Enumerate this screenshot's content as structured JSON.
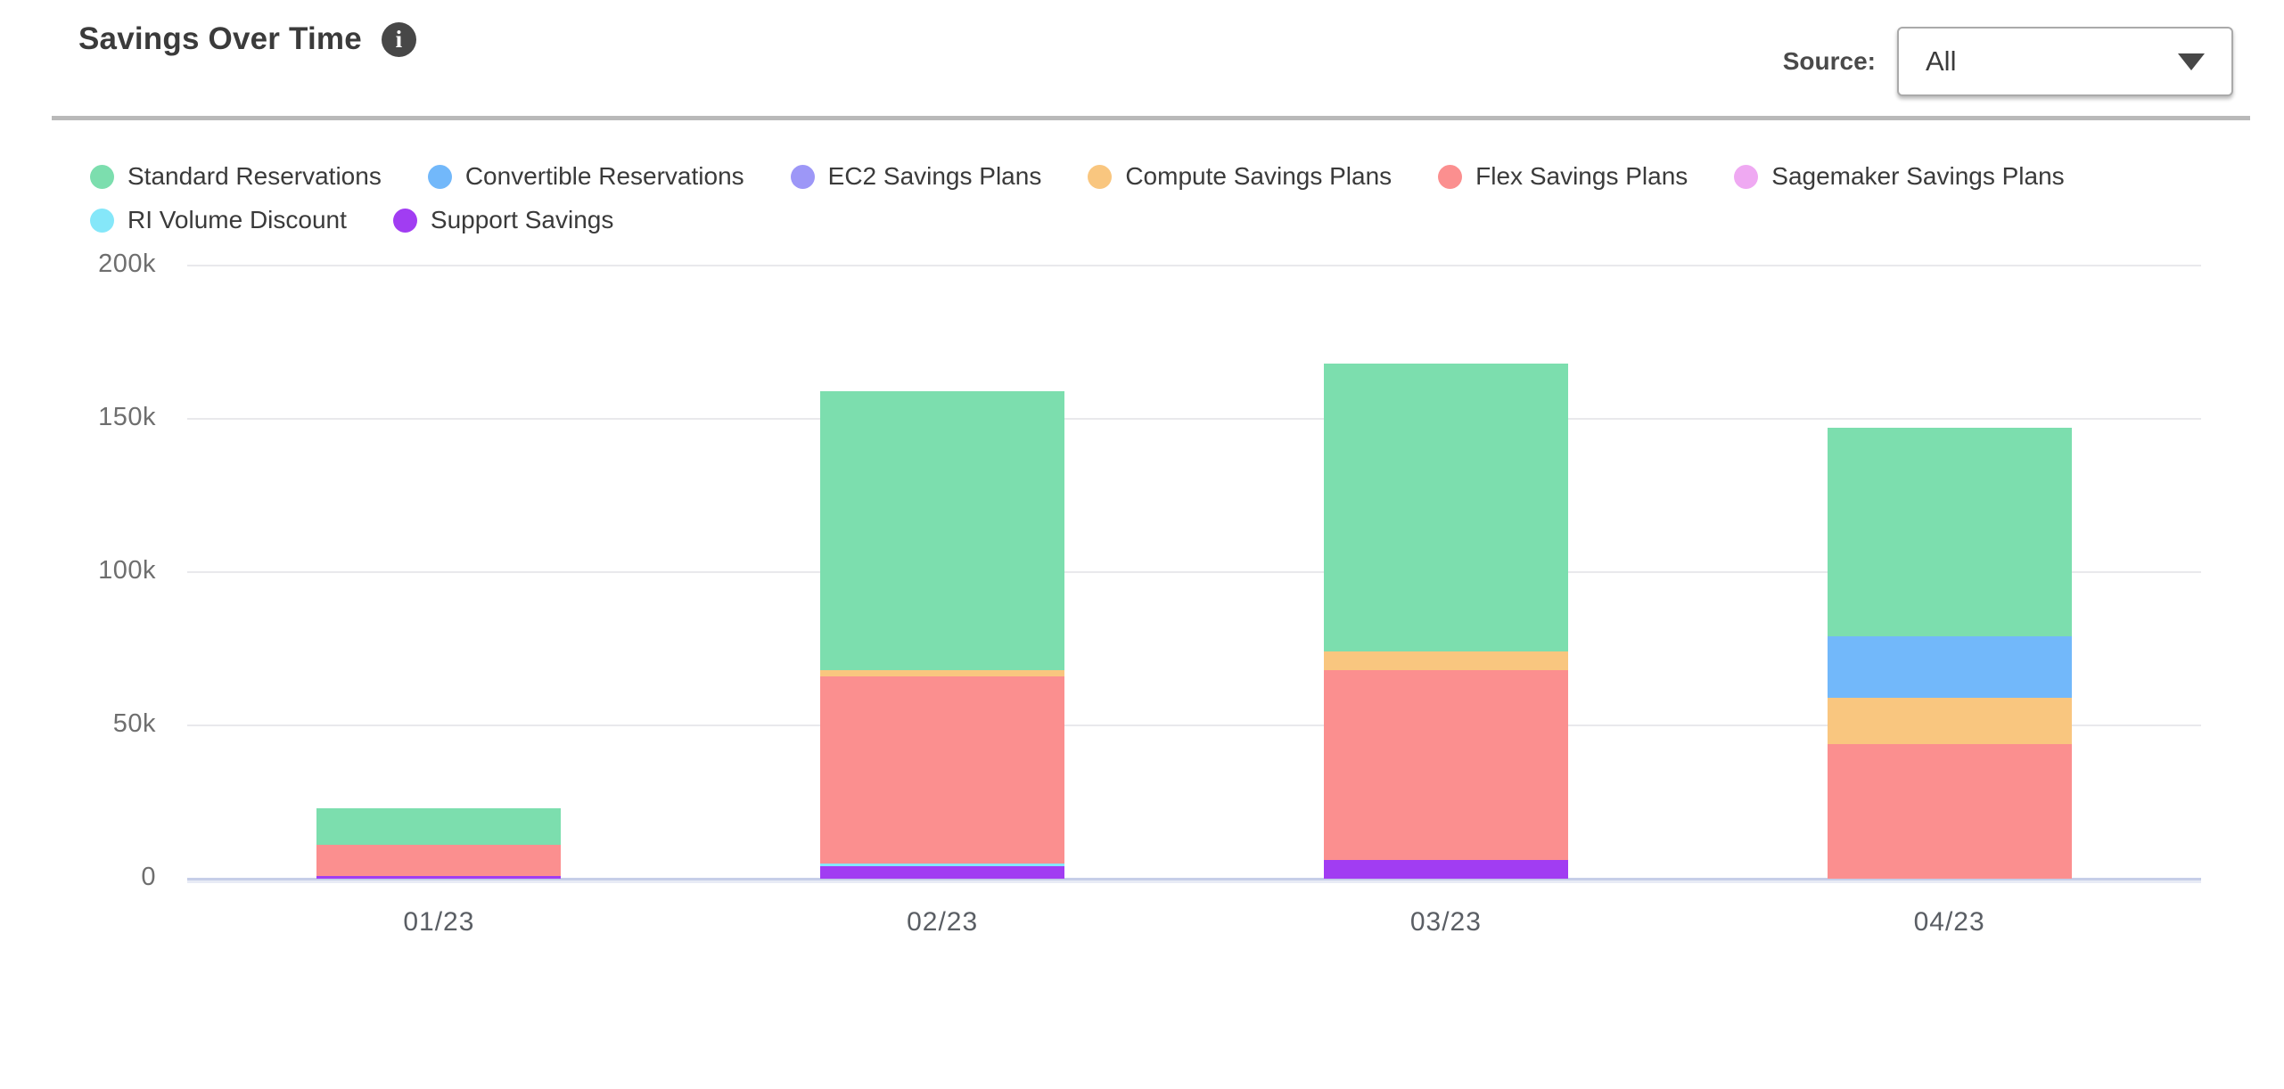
{
  "header": {
    "title": "Savings Over Time",
    "info_icon": "info-icon",
    "source_label": "Source:",
    "source_value": "All",
    "dropdown_icon": "chevron-down-icon"
  },
  "colors": {
    "divider": "#b9b9b9",
    "gridline": "#e9e9ec",
    "baseline": "#c6cee8",
    "title_text": "#3b3b3b",
    "axis_text": "#6e6e6e"
  },
  "chart_data": {
    "type": "bar",
    "stacked": true,
    "title": "Savings Over Time",
    "xlabel": "",
    "ylabel": "",
    "ylim": [
      0,
      200000
    ],
    "y_unit": "thousands",
    "y_ticks": [
      0,
      50,
      100,
      150,
      200
    ],
    "y_tick_labels": [
      "0",
      "50k",
      "100k",
      "150k",
      "200k"
    ],
    "grid": "horizontal",
    "legend_position": "top",
    "categories": [
      "01/23",
      "02/23",
      "03/23",
      "04/23"
    ],
    "series": [
      {
        "name": "Standard Reservations",
        "color": "#7cdeae",
        "values": [
          12,
          91,
          94,
          68
        ]
      },
      {
        "name": "Convertible Reservations",
        "color": "#72b8fa",
        "values": [
          0,
          0,
          0,
          20
        ]
      },
      {
        "name": "EC2 Savings Plans",
        "color": "#9d97f7",
        "values": [
          0,
          0,
          0,
          0
        ]
      },
      {
        "name": "Compute Savings Plans",
        "color": "#f9c67f",
        "values": [
          0,
          2,
          6,
          15
        ]
      },
      {
        "name": "Flex Savings Plans",
        "color": "#fb8f8f",
        "values": [
          10,
          61,
          62,
          44
        ]
      },
      {
        "name": "Sagemaker Savings Plans",
        "color": "#efa9f2",
        "values": [
          0,
          0,
          0,
          0
        ]
      },
      {
        "name": "RI Volume Discount",
        "color": "#85e7f9",
        "values": [
          0,
          1,
          0,
          0
        ]
      },
      {
        "name": "Support Savings",
        "color": "#a13df2",
        "values": [
          1,
          4,
          6,
          0
        ]
      }
    ],
    "stack_order_note": "stacked bottom-to-top in reverse legend order (Support Savings at bottom, Standard Reservations on top)"
  }
}
